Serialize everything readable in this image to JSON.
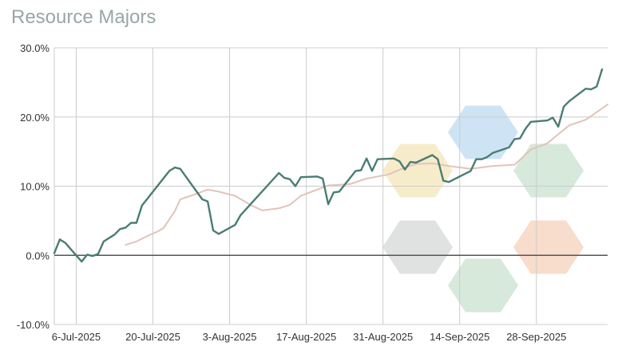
{
  "chart_data": {
    "type": "line",
    "title": "Resource Majors",
    "xlabel": "",
    "ylabel": "",
    "x_ticks": [
      "6-Jul-2025",
      "20-Jul-2025",
      "3-Aug-2025",
      "17-Aug-2025",
      "31-Aug-2025",
      "14-Sep-2025",
      "28-Sep-2025"
    ],
    "y_ticks": [
      "30.0%",
      "20.0%",
      "10.0%",
      "0.0%",
      "-10.0%"
    ],
    "ylim": [
      -10,
      30
    ],
    "xlim": [
      "2025-07-02",
      "2025-10-11"
    ],
    "grid": true,
    "colors": {
      "primary": "#4a7d74",
      "average": "#e2c3b9",
      "grid": "#cccccc",
      "zero": "#555555"
    },
    "series": [
      {
        "role": "primary",
        "values": [
          [
            "2025-07-02",
            0.3
          ],
          [
            "2025-07-03",
            2.3
          ],
          [
            "2025-07-04",
            1.8
          ],
          [
            "2025-07-06",
            0.0
          ],
          [
            "2025-07-07",
            -0.9
          ],
          [
            "2025-07-08",
            0.1
          ],
          [
            "2025-07-09",
            -0.1
          ],
          [
            "2025-07-10",
            0.2
          ],
          [
            "2025-07-11",
            2.0
          ],
          [
            "2025-07-13",
            3.0
          ],
          [
            "2025-07-14",
            3.8
          ],
          [
            "2025-07-15",
            4.0
          ],
          [
            "2025-07-16",
            4.7
          ],
          [
            "2025-07-17",
            4.7
          ],
          [
            "2025-07-18",
            7.2
          ],
          [
            "2025-07-23",
            12.2
          ],
          [
            "2025-07-24",
            12.7
          ],
          [
            "2025-07-25",
            12.5
          ],
          [
            "2025-07-29",
            8.1
          ],
          [
            "2025-07-30",
            7.8
          ],
          [
            "2025-07-31",
            3.6
          ],
          [
            "2025-08-01",
            3.1
          ],
          [
            "2025-08-04",
            4.4
          ],
          [
            "2025-08-05",
            5.8
          ],
          [
            "2025-08-12",
            11.9
          ],
          [
            "2025-08-13",
            11.2
          ],
          [
            "2025-08-14",
            11.0
          ],
          [
            "2025-08-15",
            10.0
          ],
          [
            "2025-08-16",
            11.3
          ],
          [
            "2025-08-19",
            11.4
          ],
          [
            "2025-08-20",
            11.1
          ],
          [
            "2025-08-21",
            7.4
          ],
          [
            "2025-08-22",
            9.1
          ],
          [
            "2025-08-23",
            9.2
          ],
          [
            "2025-08-26",
            12.2
          ],
          [
            "2025-08-27",
            12.3
          ],
          [
            "2025-08-28",
            14.0
          ],
          [
            "2025-08-29",
            12.2
          ],
          [
            "2025-08-30",
            13.9
          ],
          [
            "2025-09-02",
            14.0
          ],
          [
            "2025-09-03",
            13.6
          ],
          [
            "2025-09-04",
            12.4
          ],
          [
            "2025-09-05",
            13.5
          ],
          [
            "2025-09-06",
            13.4
          ],
          [
            "2025-09-09",
            14.5
          ],
          [
            "2025-09-10",
            13.9
          ],
          [
            "2025-09-11",
            10.8
          ],
          [
            "2025-09-12",
            10.6
          ],
          [
            "2025-09-16",
            12.2
          ],
          [
            "2025-09-17",
            13.9
          ],
          [
            "2025-09-18",
            13.9
          ],
          [
            "2025-09-19",
            14.2
          ],
          [
            "2025-09-20",
            14.8
          ],
          [
            "2025-09-23",
            15.6
          ],
          [
            "2025-09-24",
            16.8
          ],
          [
            "2025-09-25",
            16.9
          ],
          [
            "2025-09-26",
            18.3
          ],
          [
            "2025-09-27",
            19.3
          ],
          [
            "2025-09-30",
            19.5
          ],
          [
            "2025-10-01",
            19.9
          ],
          [
            "2025-10-02",
            18.6
          ],
          [
            "2025-10-03",
            21.5
          ],
          [
            "2025-10-04",
            22.3
          ],
          [
            "2025-10-07",
            24.1
          ],
          [
            "2025-10-08",
            24.0
          ],
          [
            "2025-10-09",
            24.4
          ],
          [
            "2025-10-10",
            26.9
          ]
        ]
      },
      {
        "role": "average",
        "values": [
          [
            "2025-07-15",
            1.5
          ],
          [
            "2025-07-17",
            2.0
          ],
          [
            "2025-07-19",
            2.8
          ],
          [
            "2025-07-21",
            3.5
          ],
          [
            "2025-07-22",
            4.0
          ],
          [
            "2025-07-24",
            6.4
          ],
          [
            "2025-07-25",
            8.1
          ],
          [
            "2025-07-28",
            8.9
          ],
          [
            "2025-07-30",
            9.5
          ],
          [
            "2025-08-01",
            9.2
          ],
          [
            "2025-08-04",
            8.6
          ],
          [
            "2025-08-07",
            7.2
          ],
          [
            "2025-08-09",
            6.5
          ],
          [
            "2025-08-12",
            6.8
          ],
          [
            "2025-08-14",
            7.3
          ],
          [
            "2025-08-16",
            8.6
          ],
          [
            "2025-08-19",
            9.5
          ],
          [
            "2025-08-21",
            10.1
          ],
          [
            "2025-08-25",
            10.3
          ],
          [
            "2025-08-28",
            11.1
          ],
          [
            "2025-09-01",
            11.7
          ],
          [
            "2025-09-04",
            12.7
          ],
          [
            "2025-09-06",
            13.2
          ],
          [
            "2025-09-09",
            13.3
          ],
          [
            "2025-09-12",
            12.9
          ],
          [
            "2025-09-16",
            12.5
          ],
          [
            "2025-09-20",
            12.9
          ],
          [
            "2025-09-24",
            13.1
          ],
          [
            "2025-09-25",
            13.8
          ],
          [
            "2025-09-27",
            15.3
          ],
          [
            "2025-09-30",
            16.2
          ],
          [
            "2025-10-02",
            17.5
          ],
          [
            "2025-10-04",
            18.8
          ],
          [
            "2025-10-07",
            19.6
          ],
          [
            "2025-10-09",
            20.7
          ],
          [
            "2025-10-11",
            21.8
          ]
        ]
      }
    ],
    "hexagons": [
      {
        "color": "#f3e4b3",
        "col": 0,
        "row": 0
      },
      {
        "color": "#b9d9ef",
        "col": 1,
        "row": -1
      },
      {
        "color": "#c5dfcc",
        "col": 2,
        "row": 0
      },
      {
        "color": "#d3d6d6",
        "col": 0,
        "row": 2
      },
      {
        "color": "#c5dfcc",
        "col": 1,
        "row": 3
      },
      {
        "color": "#f5cdb7",
        "col": 2,
        "row": 2
      }
    ]
  }
}
